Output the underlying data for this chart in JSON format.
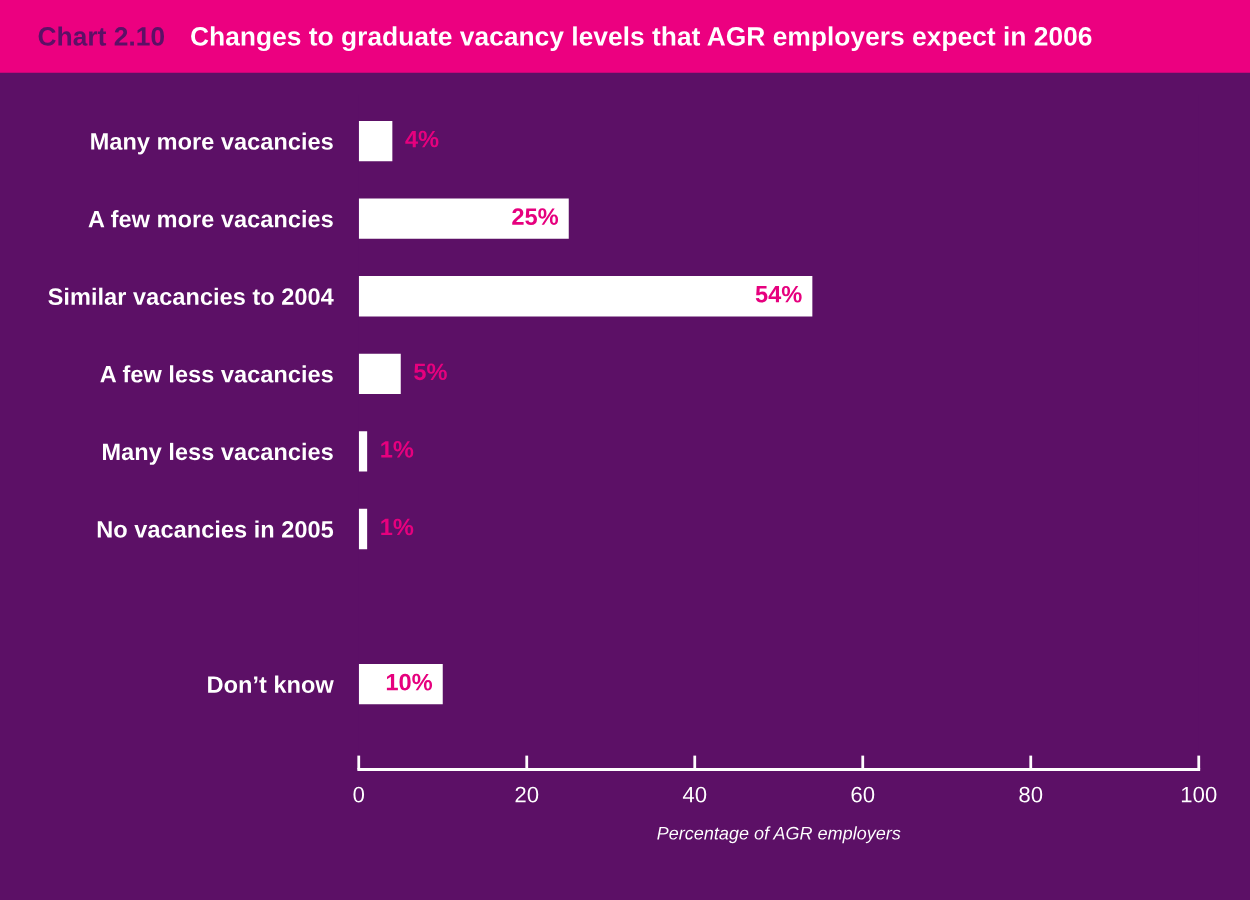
{
  "chart_data": {
    "type": "bar",
    "orientation": "horizontal",
    "title": "Changes to graduate vacancy levels that AGR employers expect in 2006",
    "annotations": [
      "Chart 2.10"
    ],
    "categories": [
      "Many more vacancies",
      "A few more vacancies",
      "Similar vacancies to 2004",
      "A few less vacancies",
      "Many less vacancies",
      "No vacancies in 2005",
      null,
      "Don’t know"
    ],
    "values": [
      4,
      25,
      54,
      5,
      1,
      1,
      null,
      10
    ],
    "value_labels": [
      "4%",
      "25%",
      "54%",
      "5%",
      "1%",
      "1%",
      null,
      "10%"
    ],
    "color": "#ffffff",
    "xlabel": "Percentage of AGR employers",
    "xlim": [
      0,
      100
    ],
    "xticks": [
      0,
      20,
      40,
      60,
      80,
      100
    ],
    "grid": false,
    "legend": false
  }
}
